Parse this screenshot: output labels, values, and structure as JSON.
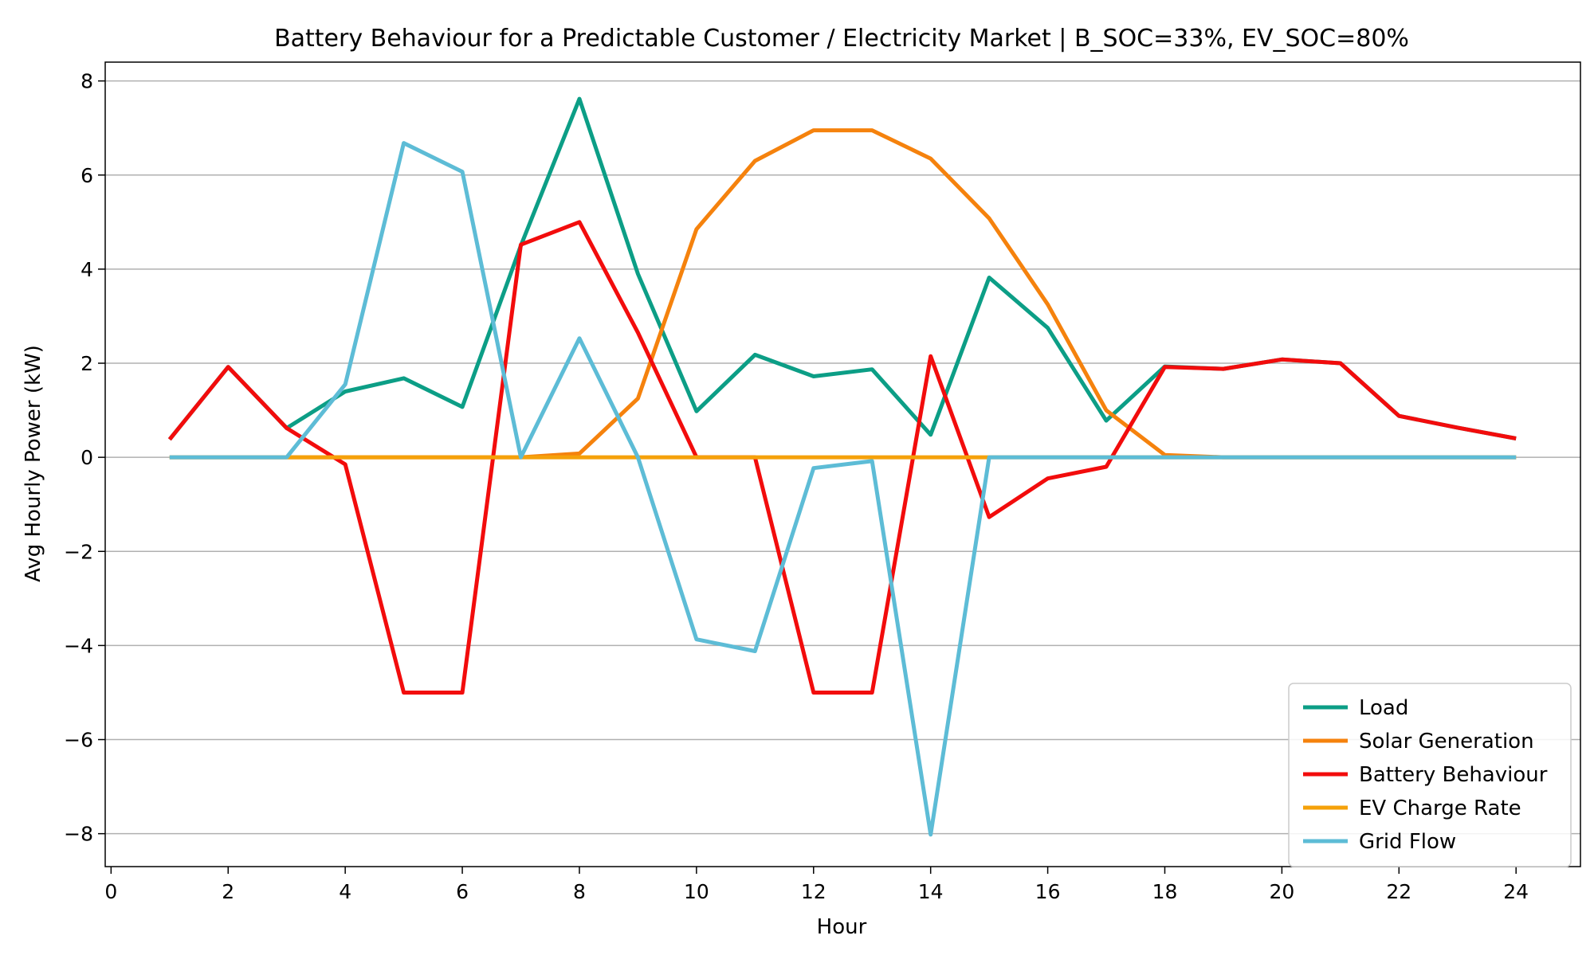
{
  "chart_data": {
    "type": "line",
    "title": "Battery Behaviour for a Predictable Customer / Electricity Market | B_SOC=33%, EV_SOC=80%",
    "xlabel": "Hour",
    "ylabel": "Avg Hourly Power (kW)",
    "xlim": [
      -0.1,
      25.1
    ],
    "ylim": [
      -8.7,
      8.4
    ],
    "xticks": [
      0,
      2,
      4,
      6,
      8,
      10,
      12,
      14,
      16,
      18,
      20,
      22,
      24
    ],
    "yticks": [
      -8,
      -6,
      -4,
      -2,
      0,
      2,
      4,
      6,
      8
    ],
    "grid": "horizontal",
    "legend_position": "lower-right",
    "x": [
      1,
      2,
      3,
      4,
      5,
      6,
      7,
      8,
      9,
      10,
      11,
      12,
      13,
      14,
      15,
      16,
      17,
      18,
      19,
      20,
      21,
      22,
      23,
      24
    ],
    "series": [
      {
        "name": "Load",
        "color": "#0c9e86",
        "values": [
          0.38,
          1.92,
          0.62,
          1.4,
          1.68,
          1.07,
          4.5,
          7.62,
          3.9,
          0.98,
          2.18,
          1.72,
          1.87,
          0.48,
          3.82,
          2.75,
          0.78,
          1.93,
          1.88,
          2.08,
          2.0,
          0.88,
          0.63,
          0.4
        ]
      },
      {
        "name": "Solar Generation",
        "color": "#f5820d",
        "values": [
          0,
          0,
          0,
          0,
          0,
          0,
          0,
          0.08,
          1.25,
          4.85,
          6.3,
          6.95,
          6.95,
          6.35,
          5.08,
          3.25,
          1.0,
          0.05,
          0,
          0,
          0,
          0,
          0,
          0
        ]
      },
      {
        "name": "Battery Behaviour",
        "color": "#f20c0c",
        "values": [
          0.38,
          1.92,
          0.62,
          -0.15,
          -5.0,
          -5.0,
          4.52,
          5.0,
          2.65,
          0,
          0,
          -5.0,
          -5.0,
          2.15,
          -1.27,
          -0.45,
          -0.2,
          1.92,
          1.88,
          2.08,
          2.0,
          0.88,
          0.63,
          0.4
        ]
      },
      {
        "name": "EV Charge Rate",
        "color": "#f5a10a",
        "values": [
          0,
          0,
          0,
          0,
          0,
          0,
          0,
          0,
          0,
          0,
          0,
          0,
          0,
          0,
          0,
          0,
          0,
          0,
          0,
          0,
          0,
          0,
          0,
          0
        ]
      },
      {
        "name": "Grid Flow",
        "color": "#5dbcd6",
        "values": [
          0,
          0,
          0,
          1.55,
          6.68,
          6.07,
          0,
          2.53,
          0,
          -3.87,
          -4.12,
          -0.23,
          -0.08,
          -8.02,
          0,
          0,
          0,
          0,
          0,
          0,
          0,
          0,
          0,
          0
        ]
      }
    ]
  }
}
